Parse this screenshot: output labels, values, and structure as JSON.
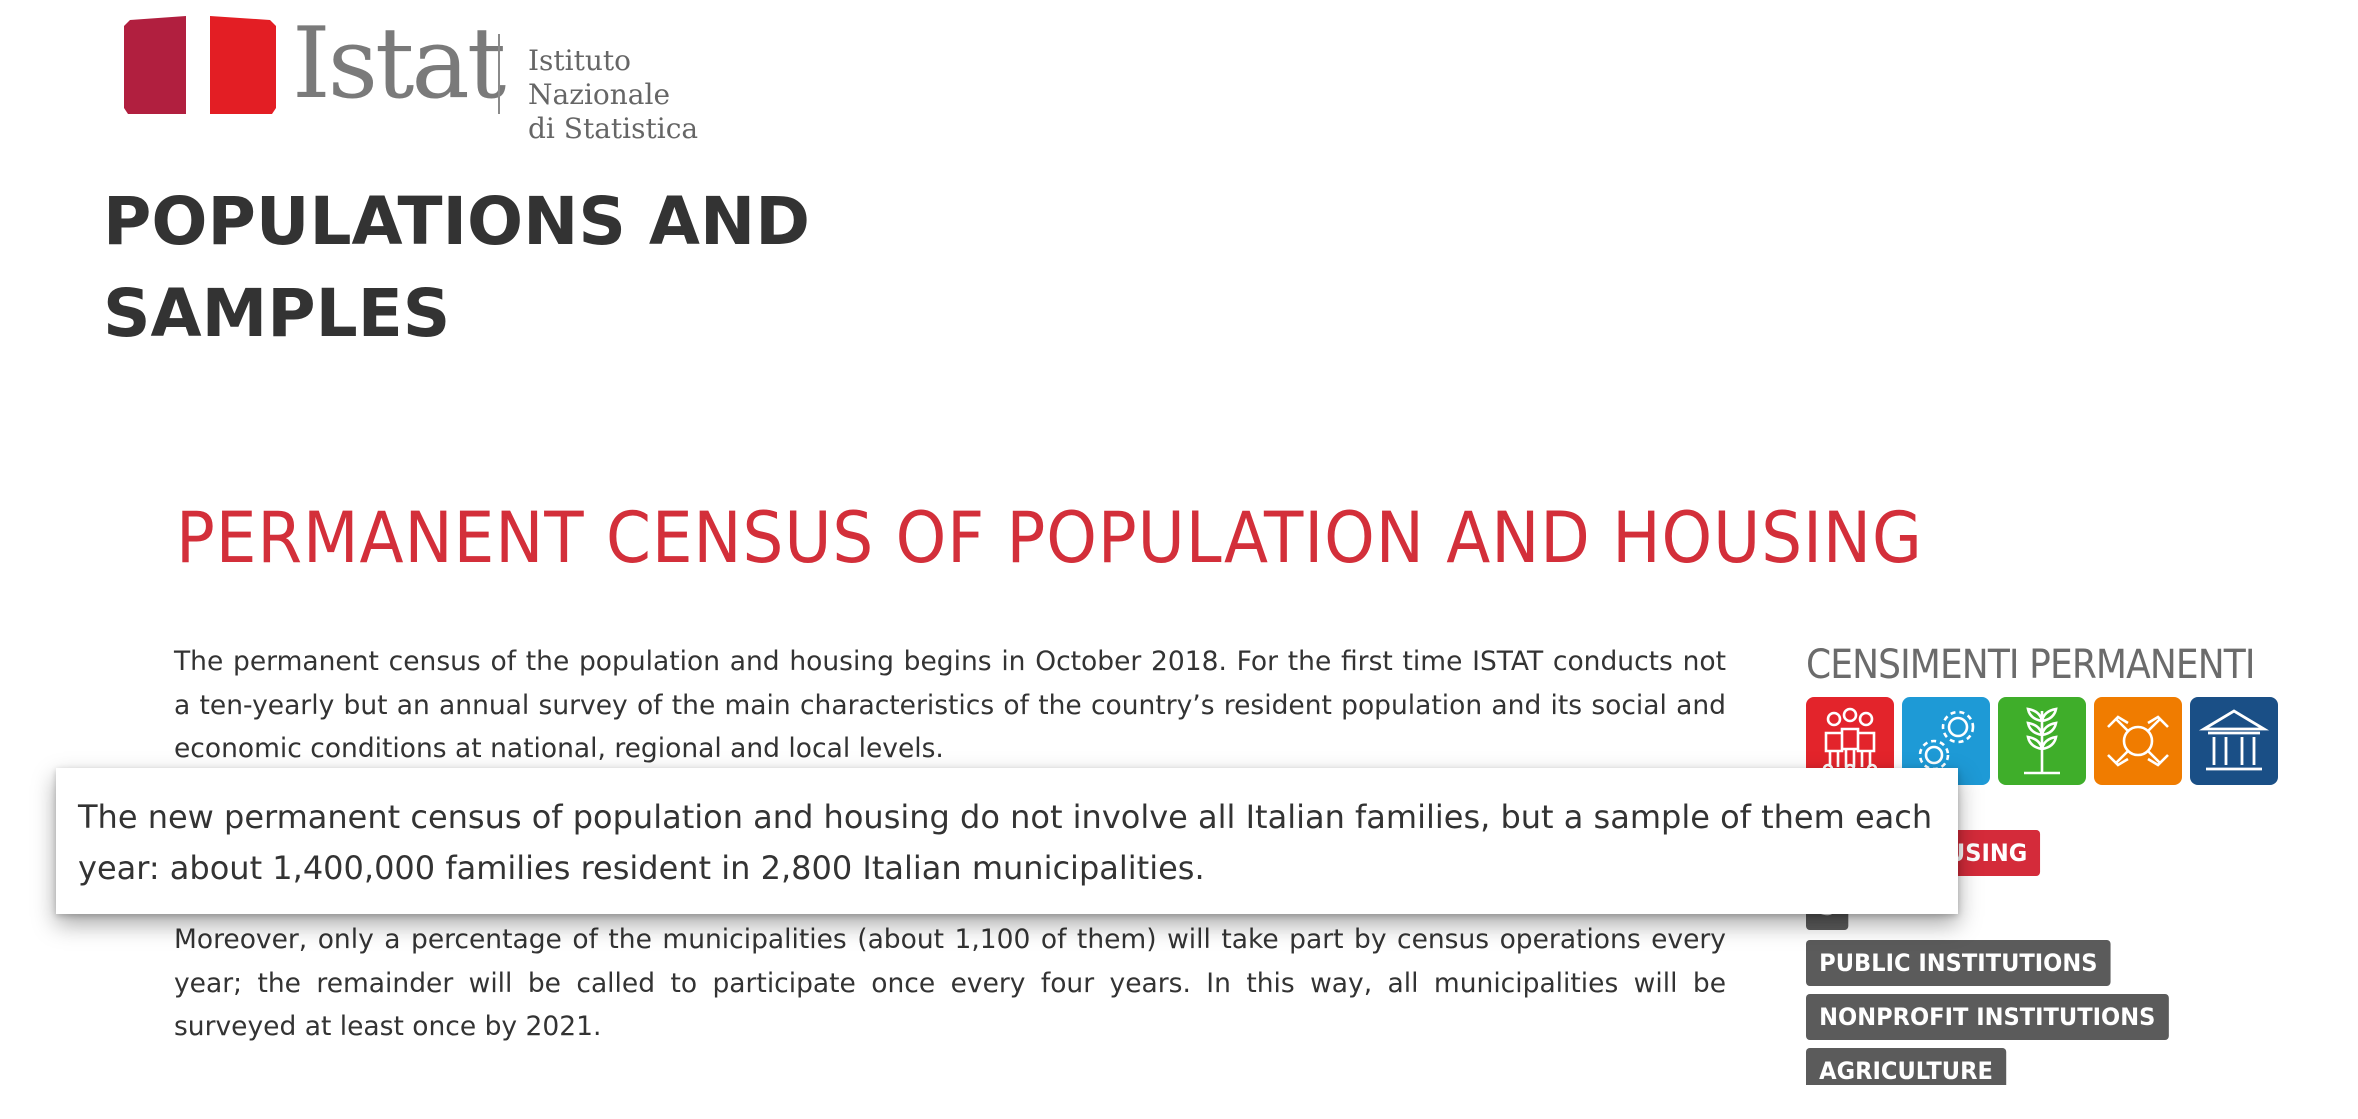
{
  "logo": {
    "wordmark": "Istat",
    "subtitle_line1": "Istituto Nazionale",
    "subtitle_line2": "di Statistica",
    "mark_colors": [
      "#b11f3f",
      "#e31e24"
    ]
  },
  "slide_title_line1": "POPULATIONS AND",
  "slide_title_line2": "SAMPLES",
  "census": {
    "heading": "PERMANENT CENSUS OF POPULATION AND HOUSING",
    "heading_color": "#d32f3a",
    "paragraph_1": "The permanent census of the population and housing begins in October 2018. For the first time ISTAT conducts not a ten-yearly but an annual survey of the main characteristics of the country’s resident population and its social and economic conditions at national, regional and local levels.",
    "paragraph_2": "Moreover, only a percentage of the municipalities (about 1,100 of them) will take part by census operations every year; the remainder will be called to participate once every four years. In this way, all municipalities will be surveyed at least once by 2021."
  },
  "censimenti": {
    "label": "CENSIMENTI PERMANENTI",
    "tiles": [
      {
        "icon": "people-icon",
        "color": "#e3242b"
      },
      {
        "icon": "gears-icon",
        "color": "#1e9ad6"
      },
      {
        "icon": "wheat-icon",
        "color": "#3fae2a"
      },
      {
        "icon": "hands-icon",
        "color": "#f07c00"
      },
      {
        "icon": "institution-icon",
        "color": "#1a4f86"
      }
    ],
    "tags": [
      {
        "label": "N AND HOUSING",
        "color": "red"
      },
      {
        "label": "S",
        "color": "gray"
      },
      {
        "label": "PUBLIC INSTITUTIONS",
        "color": "gray"
      },
      {
        "label": "NONPROFIT INSTITUTIONS",
        "color": "gray"
      },
      {
        "label": "AGRICULTURE",
        "color": "gray"
      }
    ]
  },
  "callout": {
    "text": "The new permanent census of population and housing do not involve all Italian families, but a sample of them each year: about 1,400,000 families resident in 2,800 Italian municipalities."
  }
}
